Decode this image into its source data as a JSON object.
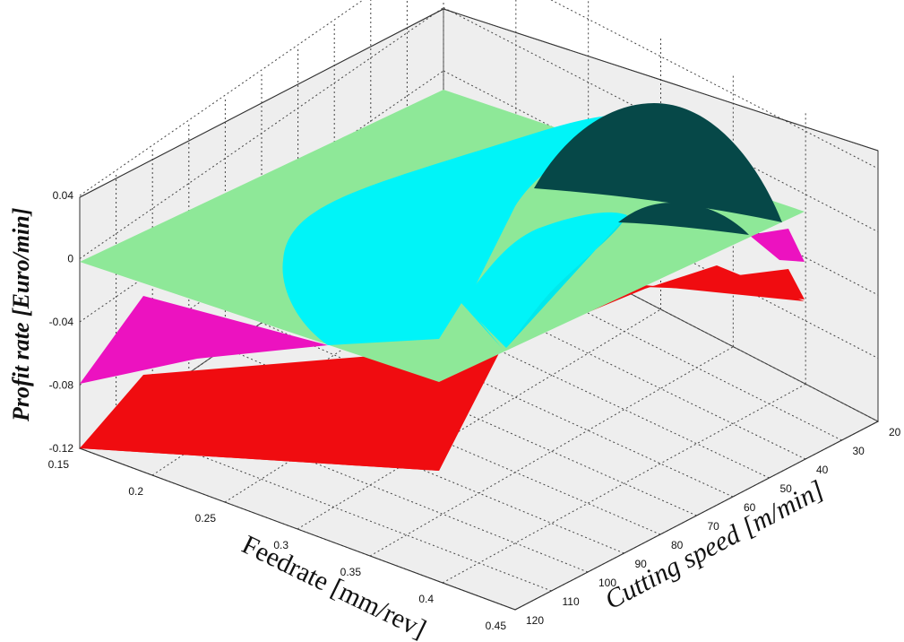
{
  "chart_data": {
    "type": "surface3d",
    "title": "",
    "xlabel": "Feedrate [mm/rev]",
    "ylabel": "Cutting speed [m/min]",
    "zlabel": "Profit rate [Euro/min]",
    "xlim": [
      0.15,
      0.45
    ],
    "ylim": [
      20,
      120
    ],
    "zlim": [
      -0.12,
      0.05
    ],
    "x_ticks": [
      "0.15",
      "0.2",
      "0.25",
      "0.3",
      "0.35",
      "0.4",
      "0.45"
    ],
    "y_ticks": [
      "20",
      "30",
      "40",
      "50",
      "60",
      "70",
      "80",
      "90",
      "100",
      "110",
      "120"
    ],
    "z_ticks": [
      "-0.12",
      "-0.08",
      "-0.04",
      "0",
      "0.04"
    ],
    "grid": true,
    "surfaces": [
      {
        "color": "#f00c10",
        "corners": [
          {
            "x": 0.15,
            "y": 120,
            "z": -0.12
          },
          {
            "x": 0.45,
            "y": 120,
            "z": -0.12
          },
          {
            "x": 0.45,
            "y": 20,
            "z": -0.02
          },
          {
            "x": 0.15,
            "y": 20,
            "z": -0.02
          }
        ]
      },
      {
        "color": "#ec12c0",
        "corners": [
          {
            "x": 0.15,
            "y": 120,
            "z": -0.08
          },
          {
            "x": 0.15,
            "y": 20,
            "z": 0.0
          },
          {
            "x": 0.45,
            "y": 20,
            "z": 0.0
          },
          {
            "x": 0.45,
            "y": 120,
            "z": -0.08
          }
        ]
      },
      {
        "color": "#8ee898",
        "corners": [
          {
            "x": 0.15,
            "y": 120,
            "z": 0.0
          },
          {
            "x": 0.15,
            "y": 20,
            "z": 0.0
          },
          {
            "x": 0.45,
            "y": 20,
            "z": 0.0
          },
          {
            "x": 0.45,
            "y": 120,
            "z": 0.0
          }
        ]
      },
      {
        "color": "#00f4f8",
        "description_level": "upper surface",
        "peak": {
          "x": 0.32,
          "y": 45,
          "z": 0.05
        }
      },
      {
        "color": "#064848",
        "description_level": "peak cap",
        "peak": {
          "x": 0.28,
          "y": 40,
          "z": 0.05
        }
      }
    ]
  }
}
